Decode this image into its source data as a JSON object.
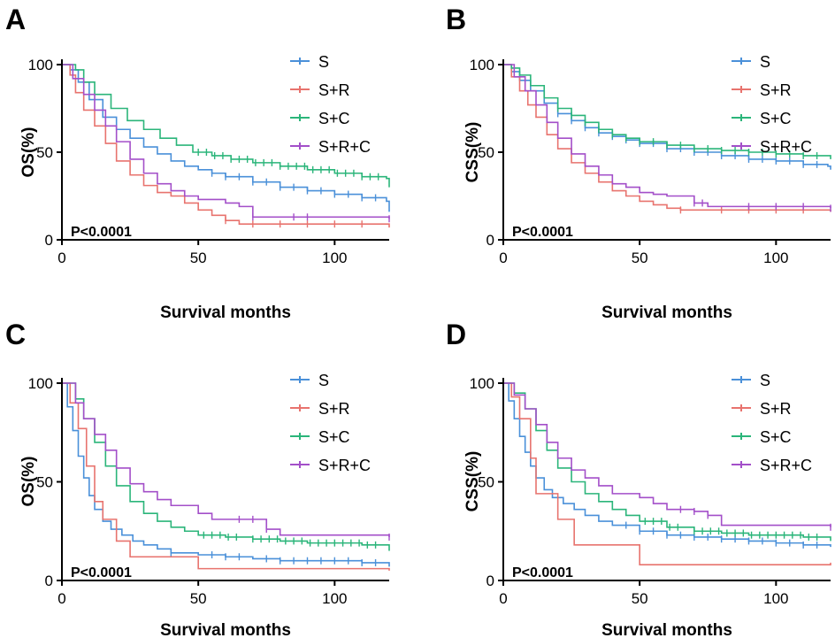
{
  "legend_colors": {
    "S": "#4a90d9",
    "S+R": "#e8736e",
    "S+C": "#2bb57a",
    "S+R+C": "#a34fc9"
  },
  "axis_color": "#000000",
  "chart_data": [
    {
      "panel": "A",
      "type": "line",
      "step": true,
      "xlabel": "Survival months",
      "ylabel": "OS(%)",
      "xlim": [
        0,
        120
      ],
      "ylim": [
        0,
        100
      ],
      "xticks": [
        0,
        50,
        100
      ],
      "yticks": [
        0,
        50,
        100
      ],
      "pvalue": "P<0.0001",
      "legend_position": "top-right",
      "series": [
        {
          "name": "S",
          "color": "#4a90d9",
          "x": [
            0,
            3,
            6,
            10,
            15,
            20,
            25,
            30,
            35,
            40,
            45,
            50,
            55,
            60,
            70,
            80,
            90,
            100,
            110,
            119,
            120
          ],
          "y": [
            100,
            97,
            90,
            80,
            70,
            63,
            58,
            53,
            49,
            45,
            42,
            40,
            38,
            36,
            33,
            30,
            28,
            26,
            24,
            22,
            16
          ],
          "censor": [
            55,
            60,
            65,
            70,
            75,
            80,
            85,
            90,
            95,
            100,
            105,
            110,
            115
          ]
        },
        {
          "name": "S+R",
          "color": "#e8736e",
          "x": [
            0,
            3,
            5,
            8,
            12,
            16,
            20,
            25,
            30,
            35,
            40,
            45,
            50,
            55,
            60,
            65,
            70,
            90,
            119,
            120
          ],
          "y": [
            100,
            94,
            84,
            74,
            65,
            55,
            45,
            37,
            31,
            27,
            25,
            21,
            17,
            14,
            11,
            9,
            9,
            9,
            9,
            7
          ],
          "censor": [
            60,
            70,
            80,
            90,
            100,
            110
          ]
        },
        {
          "name": "S+C",
          "color": "#2bb57a",
          "x": [
            0,
            5,
            8,
            12,
            18,
            24,
            30,
            36,
            42,
            48,
            55,
            62,
            70,
            80,
            90,
            100,
            110,
            119,
            120
          ],
          "y": [
            100,
            97,
            90,
            83,
            75,
            68,
            63,
            58,
            54,
            50,
            48,
            46,
            44,
            42,
            40,
            38,
            36,
            35,
            30
          ],
          "censor": [
            50,
            53,
            56,
            59,
            62,
            65,
            68,
            71,
            74,
            77,
            80,
            83,
            86,
            89,
            92,
            95,
            98,
            101,
            104,
            107,
            110,
            113,
            116
          ]
        },
        {
          "name": "S+R+C",
          "color": "#a34fc9",
          "x": [
            0,
            4,
            8,
            12,
            16,
            20,
            25,
            30,
            35,
            40,
            45,
            50,
            60,
            65,
            70,
            119,
            120
          ],
          "y": [
            100,
            92,
            83,
            74,
            65,
            56,
            46,
            38,
            32,
            28,
            25,
            23,
            21,
            19,
            13,
            13,
            12
          ],
          "censor": [
            70,
            85,
            90,
            120
          ]
        }
      ]
    },
    {
      "panel": "B",
      "type": "line",
      "step": true,
      "xlabel": "Survival months",
      "ylabel": "CSS(%)",
      "xlim": [
        0,
        120
      ],
      "ylim": [
        0,
        100
      ],
      "xticks": [
        0,
        50,
        100
      ],
      "yticks": [
        0,
        50,
        100
      ],
      "pvalue": "P<0.0001",
      "legend_position": "top-right",
      "series": [
        {
          "name": "S",
          "color": "#4a90d9",
          "x": [
            0,
            3,
            6,
            10,
            15,
            20,
            25,
            30,
            35,
            40,
            45,
            50,
            60,
            70,
            80,
            90,
            100,
            110,
            119,
            120
          ],
          "y": [
            100,
            96,
            91,
            85,
            78,
            72,
            68,
            64,
            61,
            59,
            57,
            55,
            52,
            50,
            48,
            46,
            45,
            43,
            42,
            40
          ],
          "censor": [
            20,
            25,
            30,
            35,
            40,
            45,
            50,
            55,
            60,
            65,
            70,
            75,
            80,
            85,
            90,
            95,
            100,
            105,
            110,
            115
          ]
        },
        {
          "name": "S+R",
          "color": "#e8736e",
          "x": [
            0,
            3,
            6,
            9,
            12,
            16,
            20,
            25,
            30,
            35,
            40,
            45,
            50,
            55,
            60,
            65,
            119,
            120
          ],
          "y": [
            100,
            93,
            85,
            77,
            70,
            60,
            52,
            44,
            38,
            33,
            28,
            25,
            22,
            20,
            18,
            17,
            17,
            16
          ],
          "censor": [
            65,
            80,
            90,
            100,
            110
          ]
        },
        {
          "name": "S+C",
          "color": "#2bb57a",
          "x": [
            0,
            3,
            6,
            10,
            15,
            20,
            25,
            30,
            35,
            40,
            45,
            50,
            60,
            70,
            80,
            90,
            100,
            110,
            119,
            120
          ],
          "y": [
            100,
            98,
            94,
            88,
            81,
            75,
            71,
            67,
            63,
            60,
            58,
            56,
            54,
            52,
            51,
            50,
            49,
            48,
            48,
            46
          ],
          "censor": [
            20,
            25,
            30,
            35,
            40,
            45,
            50,
            55,
            60,
            65,
            70,
            75,
            80,
            85,
            90,
            95,
            100,
            105,
            110,
            115
          ]
        },
        {
          "name": "S+R+C",
          "color": "#a34fc9",
          "x": [
            0,
            4,
            8,
            12,
            16,
            20,
            25,
            30,
            35,
            40,
            45,
            50,
            55,
            60,
            70,
            75,
            119,
            120
          ],
          "y": [
            100,
            93,
            85,
            77,
            67,
            58,
            49,
            42,
            37,
            32,
            30,
            27,
            26,
            25,
            21,
            19,
            19,
            18
          ],
          "censor": [
            70,
            73,
            90,
            100,
            110,
            120
          ]
        }
      ]
    },
    {
      "panel": "C",
      "type": "line",
      "step": true,
      "xlabel": "Survival months",
      "ylabel": "OS(%)",
      "xlim": [
        0,
        120
      ],
      "ylim": [
        0,
        100
      ],
      "xticks": [
        0,
        50,
        100
      ],
      "yticks": [
        0,
        50,
        100
      ],
      "pvalue": "P<0.0001",
      "legend_position": "top-right",
      "series": [
        {
          "name": "S",
          "color": "#4a90d9",
          "x": [
            0,
            2,
            4,
            6,
            8,
            10,
            12,
            15,
            18,
            22,
            26,
            30,
            35,
            40,
            50,
            60,
            70,
            80,
            90,
            100,
            110,
            119,
            120
          ],
          "y": [
            100,
            88,
            76,
            63,
            52,
            43,
            36,
            30,
            26,
            23,
            20,
            18,
            16,
            14,
            13,
            12,
            11,
            10,
            10,
            10,
            9,
            9,
            7
          ],
          "censor": [
            40,
            55,
            60,
            65,
            75,
            80,
            85,
            90,
            95,
            100,
            105,
            110,
            115
          ]
        },
        {
          "name": "S+R",
          "color": "#e8736e",
          "x": [
            0,
            3,
            6,
            9,
            12,
            15,
            20,
            25,
            50,
            119,
            120
          ],
          "y": [
            100,
            90,
            77,
            58,
            40,
            31,
            20,
            12,
            6,
            6,
            5
          ],
          "censor": []
        },
        {
          "name": "S+C",
          "color": "#2bb57a",
          "x": [
            0,
            5,
            8,
            12,
            16,
            20,
            25,
            30,
            35,
            40,
            45,
            50,
            60,
            70,
            80,
            90,
            100,
            110,
            119,
            120
          ],
          "y": [
            100,
            92,
            82,
            70,
            58,
            48,
            40,
            34,
            30,
            27,
            25,
            23,
            22,
            21,
            20,
            19,
            19,
            18,
            18,
            15
          ],
          "censor": [
            52,
            55,
            58,
            61,
            64,
            70,
            73,
            76,
            79,
            82,
            85,
            88,
            91,
            94,
            97,
            100,
            103,
            106,
            109,
            112,
            115
          ]
        },
        {
          "name": "S+R+C",
          "color": "#a34fc9",
          "x": [
            0,
            5,
            8,
            12,
            16,
            20,
            25,
            30,
            35,
            40,
            50,
            55,
            60,
            70,
            75,
            80,
            119,
            120
          ],
          "y": [
            100,
            90,
            82,
            74,
            66,
            57,
            49,
            45,
            41,
            38,
            34,
            31,
            31,
            31,
            26,
            23,
            23,
            22
          ],
          "censor": [
            65,
            70,
            75,
            120
          ]
        }
      ]
    },
    {
      "panel": "D",
      "type": "line",
      "step": true,
      "xlabel": "Survival months",
      "ylabel": "CSS(%)",
      "xlim": [
        0,
        120
      ],
      "ylim": [
        0,
        100
      ],
      "xticks": [
        0,
        50,
        100
      ],
      "yticks": [
        0,
        50,
        100
      ],
      "pvalue": "P<0.0001",
      "legend_position": "top-right",
      "series": [
        {
          "name": "S",
          "color": "#4a90d9",
          "x": [
            0,
            2,
            4,
            6,
            8,
            10,
            12,
            15,
            18,
            22,
            26,
            30,
            35,
            40,
            50,
            60,
            70,
            80,
            90,
            100,
            110,
            119,
            120
          ],
          "y": [
            100,
            91,
            82,
            73,
            65,
            58,
            52,
            46,
            42,
            39,
            36,
            33,
            30,
            28,
            25,
            23,
            22,
            21,
            20,
            19,
            18,
            18,
            17
          ],
          "censor": [
            45,
            50,
            55,
            60,
            65,
            70,
            75,
            80,
            85,
            90,
            95,
            100,
            105,
            110,
            115
          ]
        },
        {
          "name": "S+R",
          "color": "#e8736e",
          "x": [
            0,
            3,
            6,
            10,
            12,
            15,
            20,
            26,
            50,
            119,
            120
          ],
          "y": [
            100,
            93,
            82,
            62,
            44,
            44,
            31,
            18,
            8,
            8,
            9
          ],
          "censor": []
        },
        {
          "name": "S+C",
          "color": "#2bb57a",
          "x": [
            0,
            4,
            8,
            12,
            16,
            20,
            25,
            30,
            35,
            40,
            45,
            50,
            60,
            70,
            80,
            90,
            100,
            110,
            119,
            120
          ],
          "y": [
            100,
            95,
            87,
            76,
            66,
            57,
            50,
            44,
            40,
            36,
            33,
            30,
            27,
            25,
            24,
            23,
            23,
            22,
            22,
            20
          ],
          "censor": [
            52,
            55,
            58,
            61,
            64,
            70,
            73,
            76,
            79,
            82,
            85,
            88,
            91,
            94,
            97,
            100,
            103,
            106,
            109,
            112,
            115
          ]
        },
        {
          "name": "S+R+C",
          "color": "#a34fc9",
          "x": [
            0,
            4,
            8,
            12,
            16,
            20,
            25,
            30,
            35,
            40,
            50,
            55,
            60,
            70,
            75,
            80,
            119,
            120
          ],
          "y": [
            100,
            94,
            87,
            79,
            70,
            62,
            56,
            52,
            48,
            44,
            42,
            39,
            36,
            35,
            33,
            28,
            28,
            27
          ],
          "censor": [
            65,
            70,
            75,
            120
          ]
        }
      ]
    }
  ]
}
